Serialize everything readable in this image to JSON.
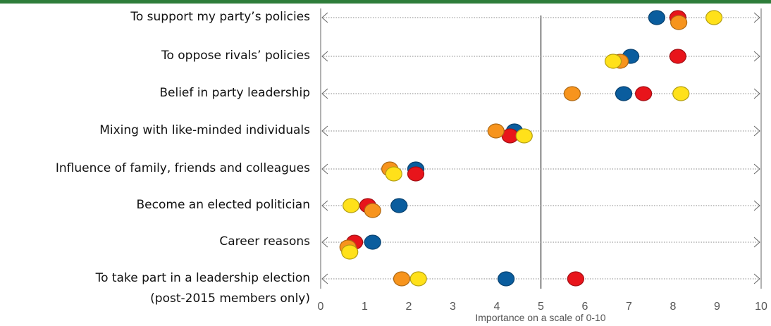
{
  "chart_data": {
    "type": "dot",
    "categories": [
      "To support my party’s policies",
      "To oppose rivals’ policies",
      "Belief in party leadership",
      "Mixing with like-minded individuals",
      "Influence of family, friends and colleagues",
      "Become an elected politician",
      "Career reasons",
      "To take part in a leadership election\n(post-2015 members only)"
    ],
    "series": [
      {
        "color": "#0a5d9e",
        "values": [
          7.63,
          7.04,
          6.88,
          4.4,
          2.16,
          1.78,
          1.18,
          4.21
        ]
      },
      {
        "color": "#e8141b",
        "values": [
          8.11,
          8.11,
          7.33,
          4.3,
          2.16,
          1.07,
          0.77,
          5.79
        ]
      },
      {
        "color": "#f7941d",
        "values": [
          8.13,
          6.8,
          5.71,
          3.98,
          1.57,
          1.18,
          0.62,
          1.84
        ]
      },
      {
        "color": "#ffe11a",
        "values": [
          8.93,
          6.64,
          8.18,
          4.62,
          1.66,
          0.69,
          0.66,
          2.22
        ]
      }
    ],
    "xlim": [
      0,
      10
    ],
    "xticks": [
      0,
      1,
      2,
      3,
      4,
      5,
      6,
      7,
      8,
      9,
      10
    ],
    "reference_line": 5,
    "xlabel": "Importance on a scale of 0-10"
  }
}
